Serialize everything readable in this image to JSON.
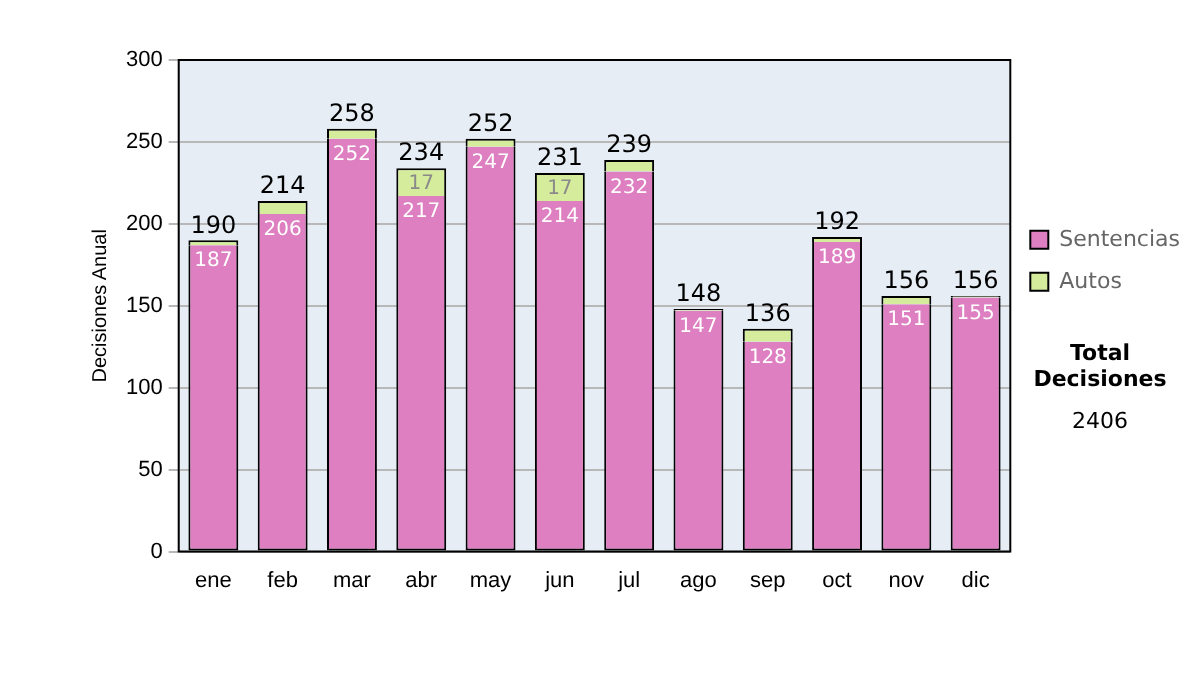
{
  "chart_data": {
    "type": "bar",
    "stacked": true,
    "ylabel": "Decisiones Anual",
    "categories": [
      "ene",
      "feb",
      "mar",
      "abr",
      "may",
      "jun",
      "jul",
      "ago",
      "sep",
      "oct",
      "nov",
      "dic"
    ],
    "series": [
      {
        "name": "Sentencias",
        "color": "#dd7fc0",
        "values": [
          187,
          206,
          252,
          217,
          247,
          214,
          232,
          147,
          128,
          189,
          151,
          155
        ],
        "value_labels": [
          "187",
          "206",
          "252",
          "217",
          "247",
          "214",
          "232",
          "147",
          "128",
          "189",
          "151",
          "155"
        ]
      },
      {
        "name": "Autos",
        "color": "#d4ec9c",
        "values": [
          3,
          8,
          6,
          17,
          5,
          17,
          7,
          1,
          8,
          3,
          5,
          1
        ],
        "value_labels": [
          null,
          null,
          null,
          "17",
          null,
          "17",
          null,
          null,
          null,
          null,
          null,
          null
        ]
      }
    ],
    "totals": [
      "190",
      "214",
      "258",
      "234",
      "252",
      "231",
      "239",
      "148",
      "136",
      "192",
      "156",
      "156"
    ],
    "ylim": [
      0,
      300
    ],
    "yticks": [
      0,
      50,
      100,
      150,
      200,
      250,
      300
    ],
    "grid": "y",
    "legend": "right",
    "annotations": [
      "Total Decisiones",
      "2406"
    ]
  }
}
